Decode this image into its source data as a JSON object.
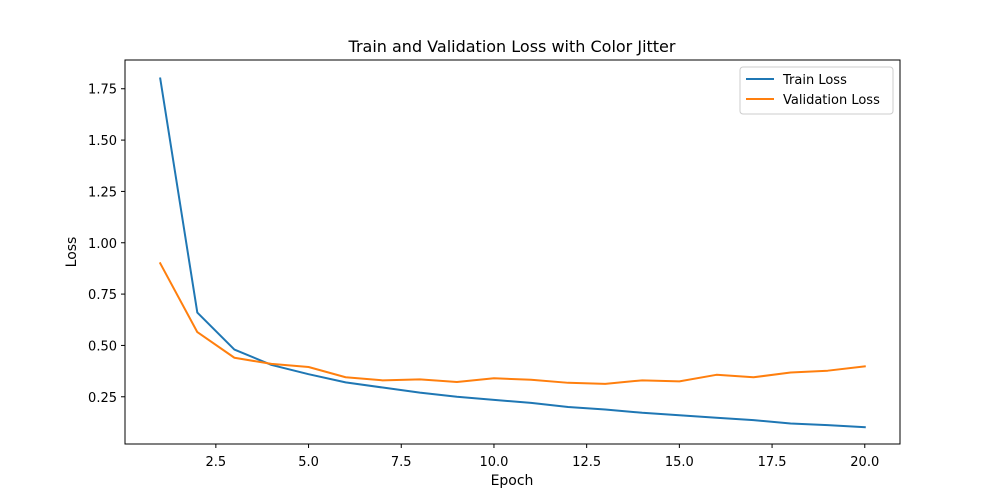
{
  "chart_data": {
    "type": "line",
    "title": "Train and Validation Loss with Color Jitter",
    "xlabel": "Epoch",
    "ylabel": "Loss",
    "xlim": [
      0.05,
      20.95
    ],
    "ylim": [
      0.02,
      1.89
    ],
    "xticks": [
      2.5,
      5.0,
      7.5,
      10.0,
      12.5,
      15.0,
      17.5,
      20.0
    ],
    "xtick_labels": [
      "2.5",
      "5.0",
      "7.5",
      "10.0",
      "12.5",
      "15.0",
      "17.5",
      "20.0"
    ],
    "yticks": [
      0.25,
      0.5,
      0.75,
      1.0,
      1.25,
      1.5,
      1.75
    ],
    "ytick_labels": [
      "0.25",
      "0.50",
      "0.75",
      "1.00",
      "1.25",
      "1.50",
      "1.75"
    ],
    "grid": false,
    "legend_position": "top-right",
    "x": [
      1,
      2,
      3,
      4,
      5,
      6,
      7,
      8,
      9,
      10,
      11,
      12,
      13,
      14,
      15,
      16,
      17,
      18,
      19,
      20
    ],
    "series": [
      {
        "name": "Train Loss",
        "color": "#1f77b4",
        "values": [
          1.8,
          0.66,
          0.48,
          0.405,
          0.36,
          0.32,
          0.295,
          0.27,
          0.25,
          0.235,
          0.22,
          0.2,
          0.188,
          0.172,
          0.16,
          0.148,
          0.136,
          0.12,
          0.112,
          0.102
        ]
      },
      {
        "name": "Validation Loss",
        "color": "#ff7f0e",
        "values": [
          0.9,
          0.565,
          0.44,
          0.41,
          0.395,
          0.345,
          0.33,
          0.335,
          0.322,
          0.34,
          0.333,
          0.318,
          0.313,
          0.33,
          0.325,
          0.357,
          0.345,
          0.368,
          0.377,
          0.398
        ]
      }
    ]
  }
}
